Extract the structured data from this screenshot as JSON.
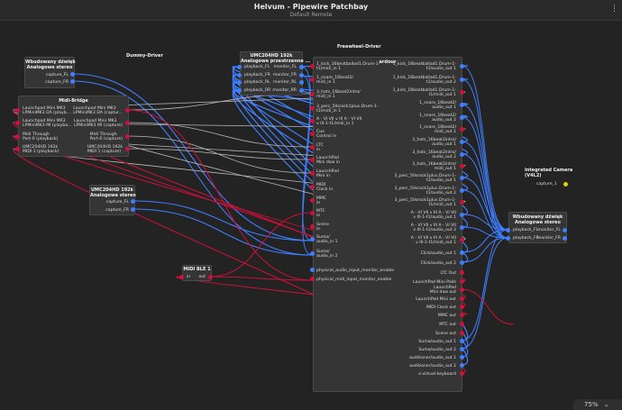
{
  "window": {
    "title": "Helvum - Pipewire Patchbay",
    "subtitle": "Default Remote",
    "menu_icon": "vertical-ellipsis-icon",
    "menu_glyph": "⋮"
  },
  "zoom": {
    "label": "75%",
    "icon": "chevron-down-icon",
    "glyph": "⌄"
  },
  "colors": {
    "audio": "#3f7fff",
    "midi": "#d0103a",
    "video": "#e0d000",
    "link_dim": "#b8b8b8",
    "background": "#232323",
    "node": "#353535"
  },
  "nodes": {
    "wbud1": {
      "title": "Wbudowany dźwięk\nAnalogowe stereo",
      "ports": [
        "capture_FL",
        "capture_FR"
      ]
    },
    "dummy": {
      "title": "Dummy-Driver"
    },
    "umc1": {
      "title": "UMC204HD 192k\nAnalogowe przestrzenne ...",
      "left_ports": [
        "playback_FL",
        "playback_FR",
        "playback_RL",
        "playback_RR"
      ],
      "right_ports": [
        "monitor_FL",
        "monitor_FR",
        "monitor_RL",
        "monitor_RR"
      ]
    },
    "freewheel": {
      "title": "Freewheel-Driver"
    },
    "midibridge": {
      "title": "Midi-Bridge",
      "left_ports": [
        "Launchpad Mini MK3\nLPMiniMK3 DA (playb...",
        "Launchpad Mini MK3\nLPMiniMK3 MI (playba...",
        "Midi Through\nPort-0 (playback)",
        "UMC204HD 192k\nMIDI 1 (playback)"
      ],
      "right_ports": [
        "Launchpad Mini MK3\nLPMiniMK3 DA (captur...",
        "Launchpad Mini MK3\nLPMiniMK3 MI (capture)",
        "Midi Through\nPort-0 (capture)",
        "UMC204HD 192k\nMIDI 1 (capture)"
      ]
    },
    "umc2": {
      "title": "UMC204HD 192k\nAnalogowe stereo",
      "ports": [
        "capture_FL",
        "capture_FR"
      ]
    },
    "midible": {
      "title": "MIDI BLE 1",
      "left_port": "in",
      "right_port": "out"
    },
    "ardour": {
      "title": "ardour",
      "left_ports": [
        "1_kick_16beatballad1.Drum-1-\nt1/midi_in 1",
        "1_snare_16beat2/\nmidi_in 1",
        "3_hats_16beat2intro/\nmidi_in 1",
        "3_perc_50srock1plus.Drum-1-\nt1/midi_in 1",
        "A - VI VII v III A - VI VII\nv III-1-t1/midi_in 1",
        "Cue\nControl in",
        "LTC\nin",
        "LaunchPad\nMini daw in",
        "LaunchPad\nMini in",
        "MIDI\nClock in",
        "MMC\nin",
        "MTC\nin",
        "Scene\nin",
        "Suma/\naudio_in 1",
        "Suma/\naudio_in 2",
        "physical_audio_input_monitor_enable",
        "physical_midi_input_monitor_enable"
      ],
      "right_ports": [
        "1_kick_16beatballad1.Drum-1-\nt1/audio_out 1",
        "1_kick_16beatballad1.Drum-1-\nt1/audio_out 2",
        "1_kick_16beatballad1.Drum-1-\nt1/midi_out 1",
        "1_snare_16beat2/\naudio_out 1",
        "1_snare_16beat2/\naudio_out 2",
        "1_snare_16beat2/\nmidi_out 1",
        "3_hats_16beat2intro/\naudio_out 1",
        "3_hats_16beat2intro/\naudio_out 2",
        "3_hats_16beat2intro/\nmidi_out 1",
        "3_perc_50srock1plus.Drum-1-\nt1/audio_out 1",
        "3_perc_50srock1plus.Drum-1-\nt1/audio_out 2",
        "3_perc_50srock1plus.Drum-1-\nt1/midi_out 1",
        "A - VI VII v III A - VI VII\nv III-1-t1/audio_out 1",
        "A - VI VII v III A - VI VII\nv III-1-t1/audio_out 2",
        "A - VI VII v III A - VI VII\nv III-1-t1/midi_out 1",
        "Click/audio_out 1",
        "Click/audio_out 2",
        "LTC Out",
        "LaunchPad Mini Pads",
        "LaunchPad\nMini daw out",
        "LaunchPad Mini out",
        "MIDI Clock out",
        "MMC out",
        "MTC out",
        "Scene out",
        "Suma/audio_out 1",
        "Suma/audio_out 2",
        "auditioner/audio_out 1",
        "auditioner/audio_out 2",
        "x-virtual-keyboard"
      ]
    },
    "camera": {
      "title": "Integrated Camera\n(V4L2)",
      "port": "capture_1"
    },
    "wbud2": {
      "title": "Wbudowany dźwięk\nAnalogowe stereo",
      "left_ports": [
        "playback_FL",
        "playback_FR"
      ],
      "right_ports": [
        "monitor_FL",
        "monitor_FR"
      ]
    }
  }
}
